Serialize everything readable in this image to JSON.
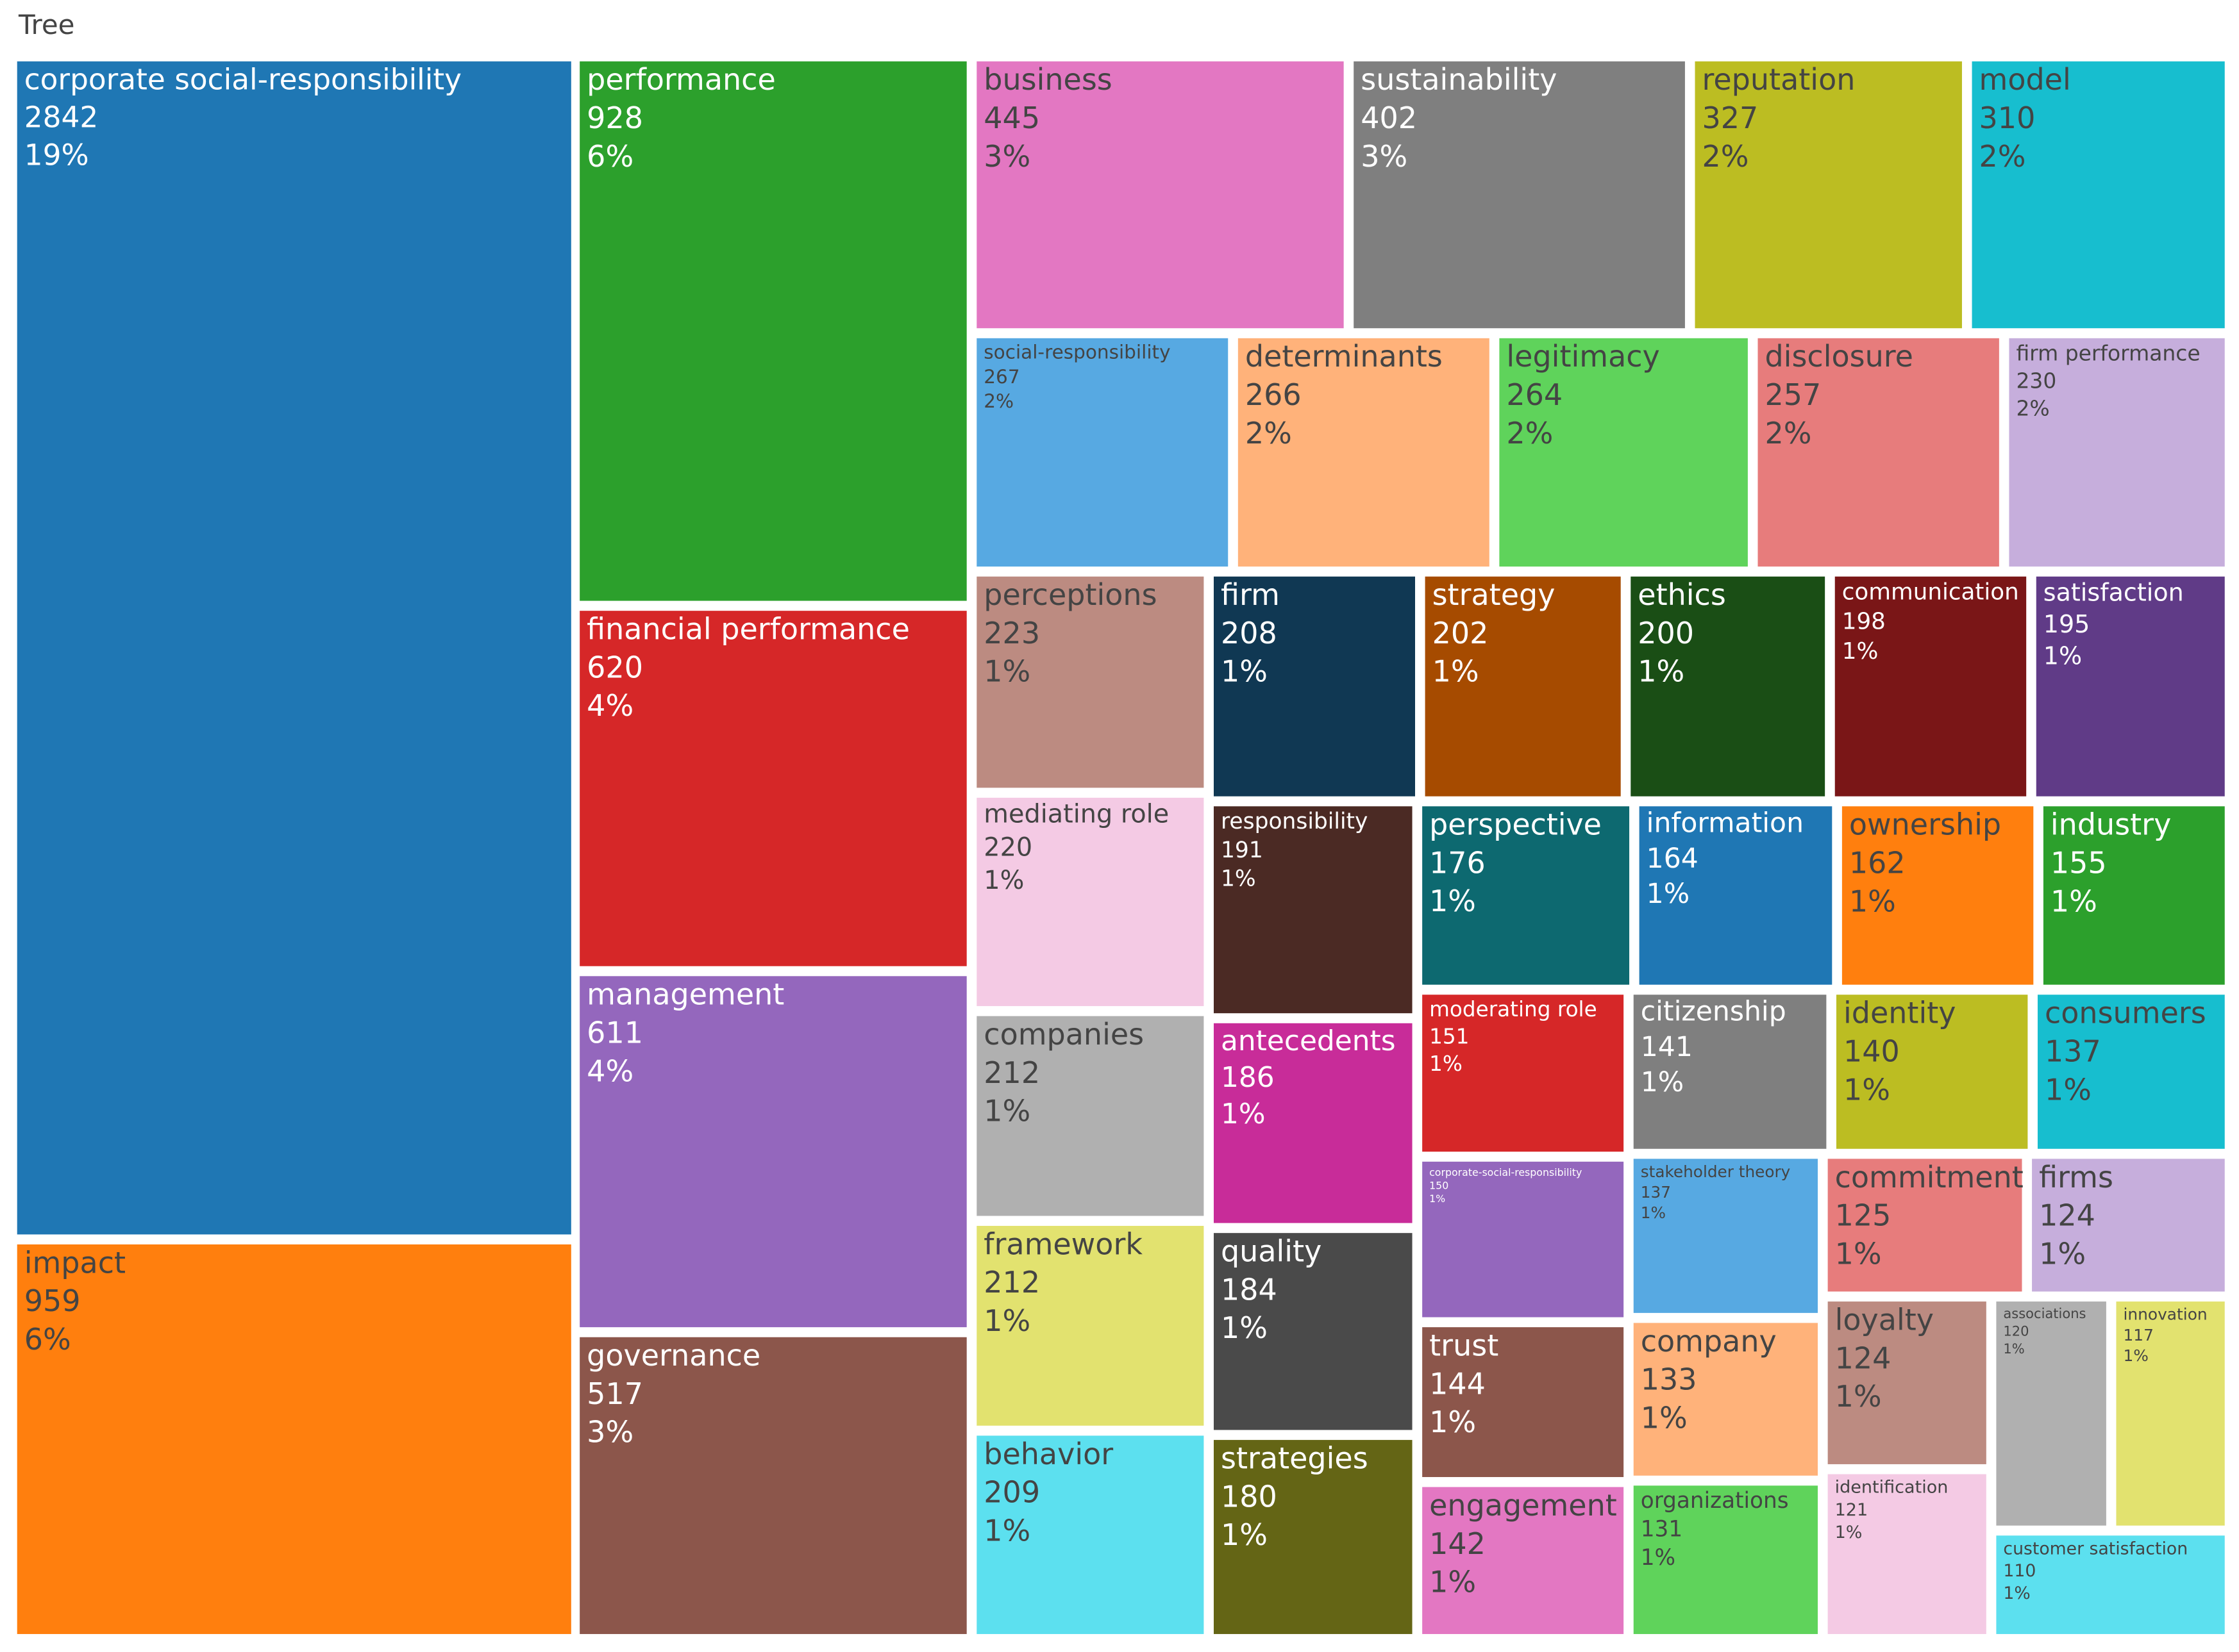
{
  "chart_data": {
    "type": "treemap",
    "title": "Tree",
    "labels": [
      "corporate social-responsibility",
      "impact",
      "performance",
      "financial performance",
      "management",
      "governance",
      "business",
      "sustainability",
      "reputation",
      "model",
      "social-responsibility",
      "determinants",
      "legitimacy",
      "disclosure",
      "firm performance",
      "perceptions",
      "firm",
      "strategy",
      "ethics",
      "communication",
      "satisfaction",
      "mediating role",
      "companies",
      "framework",
      "behavior",
      "responsibility",
      "antecedents",
      "quality",
      "strategies",
      "perspective",
      "information",
      "ownership",
      "industry",
      "moderating role",
      "corporate-social-responsibility",
      "trust",
      "engagement",
      "citizenship",
      "stakeholder theory",
      "company",
      "organizations",
      "identity",
      "consumers",
      "commitment",
      "firms",
      "loyalty",
      "identification",
      "associations",
      "innovation",
      "customer satisfaction"
    ],
    "values": [
      2842,
      959,
      928,
      620,
      611,
      517,
      445,
      402,
      327,
      310,
      267,
      266,
      264,
      257,
      230,
      223,
      208,
      202,
      200,
      198,
      195,
      220,
      212,
      212,
      209,
      191,
      186,
      184,
      180,
      176,
      164,
      162,
      155,
      151,
      150,
      144,
      142,
      141,
      137,
      133,
      131,
      140,
      137,
      125,
      124,
      124,
      121,
      120,
      117,
      110
    ],
    "percent_labels": [
      "19%",
      "6%",
      "6%",
      "4%",
      "4%",
      "3%",
      "3%",
      "3%",
      "2%",
      "2%",
      "2%",
      "2%",
      "2%",
      "2%",
      "2%",
      "1%",
      "1%",
      "1%",
      "1%",
      "1%",
      "1%",
      "1%",
      "1%",
      "1%",
      "1%",
      "1%",
      "1%",
      "1%",
      "1%",
      "1%",
      "1%",
      "1%",
      "1%",
      "1%",
      "1%",
      "1%",
      "1%",
      "1%",
      "1%",
      "1%",
      "1%",
      "1%",
      "1%",
      "1%",
      "1%",
      "1%",
      "1%",
      "1%",
      "1%",
      "1%"
    ],
    "colors": [
      "#1f77b4",
      "#ff7f0e",
      "#2ca02c",
      "#d62728",
      "#9467bd",
      "#8c564b",
      "#e377c2",
      "#7f7f7f",
      "#bcbd22",
      "#17becf",
      "#57a9e2",
      "#ffb27a",
      "#5fd35b",
      "#e77c7c",
      "#c6aedc",
      "#bc8b81",
      "#103853",
      "#a64b00",
      "#1a4e15",
      "#7a1617",
      "#603b87",
      "#f4cae4",
      "#b0b0b0",
      "#e2e26f",
      "#5ce0ef",
      "#4b2a24",
      "#c82c99",
      "#4a4a4a",
      "#646515",
      "#0d6970",
      "#1f77b4",
      "#ff7f0e",
      "#2ca02c",
      "#d62728",
      "#9467bd",
      "#8c564b",
      "#e377c2",
      "#7f7f7f",
      "#57a9e2",
      "#ffb27a",
      "#5fd35b",
      "#bcbd22",
      "#17becf",
      "#e77c7c",
      "#c6aedc",
      "#bc8b81",
      "#f4cae4",
      "#b0b0b0",
      "#e2e26f",
      "#5ce0ef"
    ]
  }
}
